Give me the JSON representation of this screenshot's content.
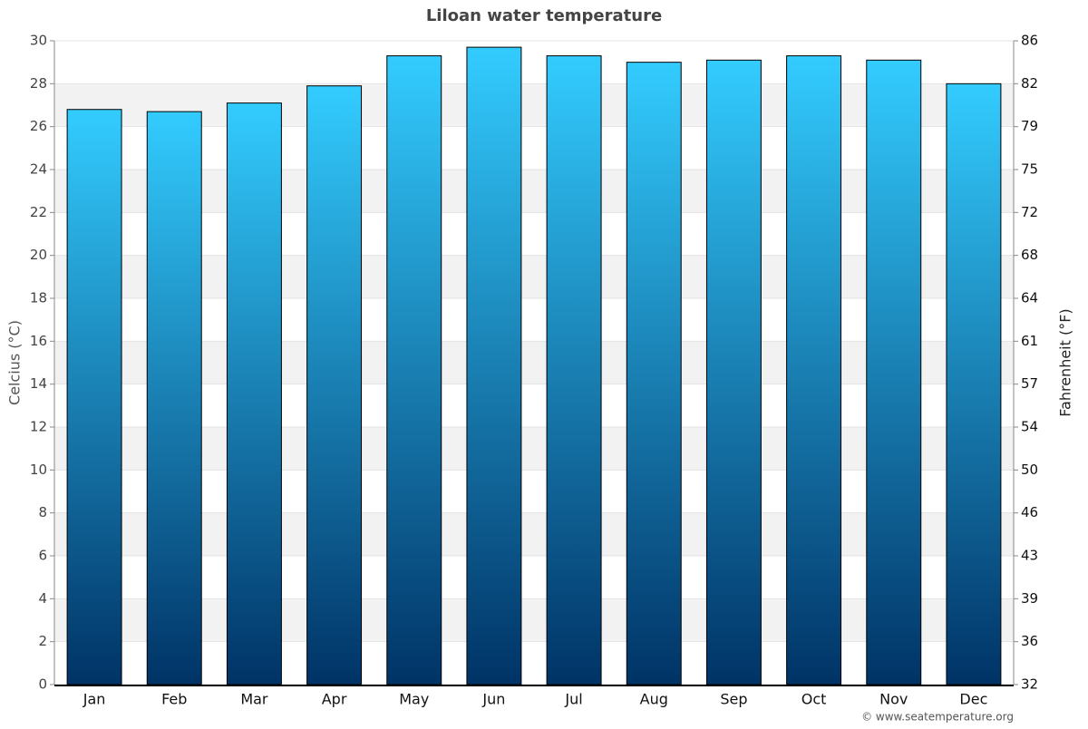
{
  "chart_data": {
    "type": "bar",
    "title": "Liloan water temperature",
    "categories": [
      "Jan",
      "Feb",
      "Mar",
      "Apr",
      "May",
      "Jun",
      "Jul",
      "Aug",
      "Sep",
      "Oct",
      "Nov",
      "Dec"
    ],
    "values": [
      26.8,
      26.7,
      27.1,
      27.9,
      29.3,
      29.7,
      29.3,
      29.0,
      29.1,
      29.3,
      29.1,
      28.0
    ],
    "gradient": [
      "#33ccff",
      "#003366"
    ],
    "ylabel": "Celcius (°C)",
    "y2label": "Fahrenheit (°F)",
    "ylim": [
      0,
      30
    ],
    "yticks": [
      0,
      2,
      4,
      6,
      8,
      10,
      12,
      14,
      16,
      18,
      20,
      22,
      24,
      26,
      28,
      30
    ],
    "y2lim": [
      32,
      86
    ],
    "y2ticks": [
      32,
      {
        "value": 35.6,
        "label": "36"
      },
      {
        "value": 39.2,
        "label": "39"
      },
      {
        "value": 42.8,
        "label": "43"
      },
      {
        "value": 46.4,
        "label": "46"
      },
      50,
      {
        "value": 53.6,
        "label": "54"
      },
      {
        "value": 57.2,
        "label": "57"
      },
      {
        "value": 60.8,
        "label": "61"
      },
      {
        "value": 64.4,
        "label": "64"
      },
      68,
      {
        "value": 71.6,
        "label": "72"
      },
      {
        "value": 75.2,
        "label": "75"
      },
      {
        "value": 78.8,
        "label": "79"
      },
      {
        "value": 82.4,
        "label": "82"
      },
      86
    ],
    "banded_grid": true,
    "credit": "© www.seatemperature.org"
  }
}
